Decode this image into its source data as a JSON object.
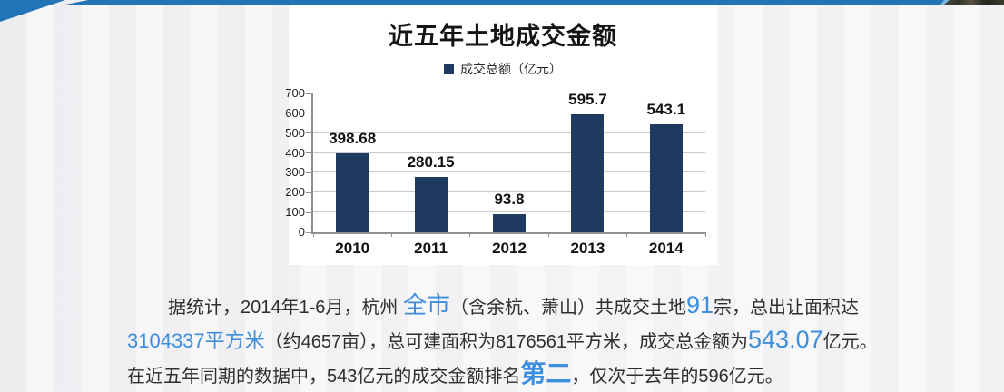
{
  "slide": {
    "ribbon_color": "#2373B7",
    "background_color": "#f2f2f4"
  },
  "chart_data": {
    "type": "bar",
    "title": "近五年土地成交金额",
    "legend": [
      "成交总额（亿元）"
    ],
    "legend_position": "top",
    "categories": [
      "2010",
      "2011",
      "2012",
      "2013",
      "2014"
    ],
    "values": [
      398.68,
      280.15,
      93.8,
      595.7,
      543.1
    ],
    "value_labels": [
      "398.68",
      "280.15",
      "93.8",
      "595.7",
      "543.1"
    ],
    "ylim": [
      0,
      700
    ],
    "yticks": [
      0,
      100,
      200,
      300,
      400,
      500,
      600,
      700
    ],
    "grid": true,
    "bar_color": "#1F3A5F",
    "xlabel": "",
    "ylabel": ""
  },
  "paragraph": {
    "highlight_color": "#3E8EDE",
    "lines": [
      [
        {
          "text": "据统计，2014年1-6月，杭州 ",
          "style": "body"
        },
        {
          "text": "全市",
          "style": "hl-md"
        },
        {
          "text": "（含余杭、萧山）共成交土地",
          "style": "body"
        },
        {
          "text": "91",
          "style": "hl-lg"
        },
        {
          "text": "宗，总出让面积达",
          "style": "body"
        }
      ],
      [
        {
          "text": "3104337平方米",
          "style": "hl-sm"
        },
        {
          "text": "（约4657亩），总可建面积为8176561平方米，成交总金额为",
          "style": "body"
        },
        {
          "text": "543.07",
          "style": "hl-lg"
        },
        {
          "text": "亿元。",
          "style": "body"
        }
      ],
      [
        {
          "text": "在近五年同期的数据中，543亿元的成交金额排名",
          "style": "body"
        },
        {
          "text": "第二",
          "style": "hl-xl"
        },
        {
          "text": "，仅次于去年的596亿元。",
          "style": "body"
        }
      ]
    ]
  }
}
